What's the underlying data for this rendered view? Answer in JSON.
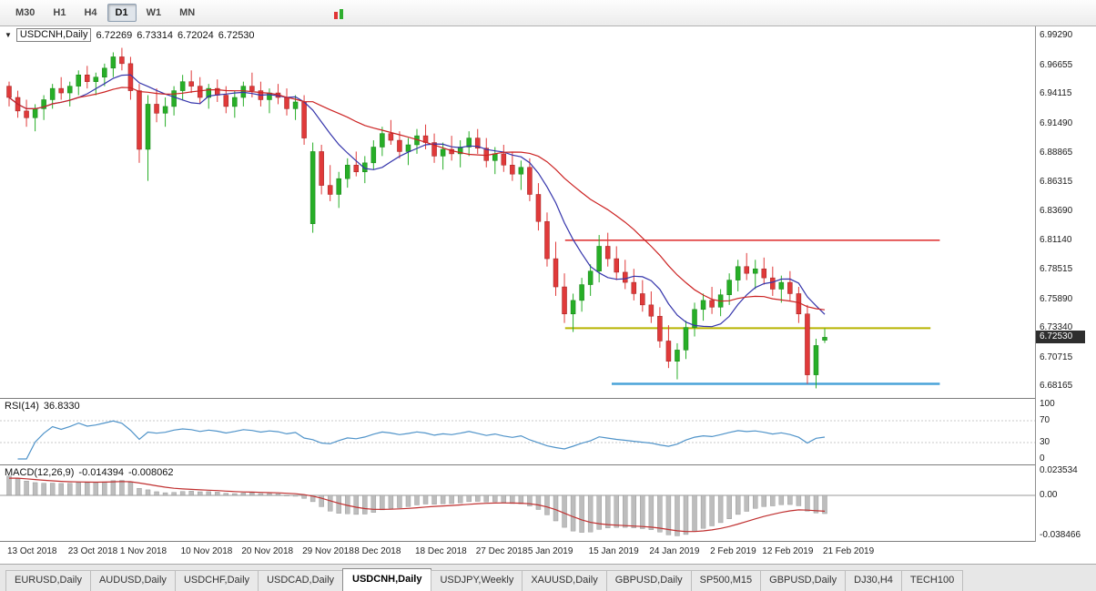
{
  "toolbar": {
    "timeframes": [
      "M30",
      "H1",
      "H4",
      "D1",
      "W1",
      "MN"
    ],
    "active_timeframe": "D1"
  },
  "icons": {
    "chevron_down": "▼"
  },
  "chart": {
    "symbol_label": "USDCNH,Daily",
    "ohlc": {
      "open": "6.72269",
      "high": "6.73314",
      "low": "6.72024",
      "close": "6.72530"
    },
    "current_price": "6.72530"
  },
  "chart_data": {
    "type": "candlestick",
    "symbol": "USDCNH",
    "timeframe": "Daily",
    "price_axis": {
      "min": 6.6715,
      "max": 7.001,
      "labels": [
        "6.99290",
        "6.96655",
        "6.94115",
        "6.91490",
        "6.88865",
        "6.86315",
        "6.83690",
        "6.81140",
        "6.78515",
        "6.75890",
        "6.73340",
        "6.70715",
        "6.68165"
      ]
    },
    "x_axis": {
      "labels": [
        {
          "text": "13 Oct 2018",
          "index": 0
        },
        {
          "text": "23 Oct 2018",
          "index": 7
        },
        {
          "text": "1 Nov 2018",
          "index": 13
        },
        {
          "text": "10 Nov 2018",
          "index": 20
        },
        {
          "text": "20 Nov 2018",
          "index": 27
        },
        {
          "text": "29 Nov 2018",
          "index": 34
        },
        {
          "text": "8 Dec 2018",
          "index": 40
        },
        {
          "text": "18 Dec 2018",
          "index": 47
        },
        {
          "text": "27 Dec 2018",
          "index": 54
        },
        {
          "text": "5 Jan 2019",
          "index": 60
        },
        {
          "text": "15 Jan 2019",
          "index": 67
        },
        {
          "text": "24 Jan 2019",
          "index": 74
        },
        {
          "text": "2 Feb 2019",
          "index": 81
        },
        {
          "text": "12 Feb 2019",
          "index": 87
        },
        {
          "text": "21 Feb 2019",
          "index": 94
        }
      ]
    },
    "candles": [
      [
        6.948,
        6.952,
        6.93,
        6.938
      ],
      [
        6.938,
        6.944,
        6.92,
        6.926
      ],
      [
        6.926,
        6.936,
        6.912,
        6.92
      ],
      [
        6.92,
        6.932,
        6.908,
        6.928
      ],
      [
        6.928,
        6.94,
        6.918,
        6.936
      ],
      [
        6.936,
        6.95,
        6.928,
        6.946
      ],
      [
        6.946,
        6.956,
        6.936,
        6.942
      ],
      [
        6.942,
        6.952,
        6.93,
        6.948
      ],
      [
        6.948,
        6.962,
        6.94,
        6.958
      ],
      [
        6.958,
        6.966,
        6.946,
        6.952
      ],
      [
        6.952,
        6.96,
        6.94,
        6.956
      ],
      [
        6.956,
        6.968,
        6.948,
        6.964
      ],
      [
        6.964,
        6.978,
        6.956,
        6.974
      ],
      [
        6.974,
        6.982,
        6.962,
        6.968
      ],
      [
        6.968,
        6.974,
        6.936,
        6.944
      ],
      [
        6.944,
        6.95,
        6.88,
        6.892
      ],
      [
        6.892,
        6.94,
        6.864,
        6.932
      ],
      [
        6.932,
        6.946,
        6.916,
        6.924
      ],
      [
        6.924,
        6.938,
        6.912,
        6.93
      ],
      [
        6.93,
        6.948,
        6.922,
        6.944
      ],
      [
        6.944,
        6.958,
        6.936,
        6.952
      ],
      [
        6.952,
        6.962,
        6.942,
        6.948
      ],
      [
        6.948,
        6.956,
        6.932,
        6.938
      ],
      [
        6.938,
        6.95,
        6.928,
        6.946
      ],
      [
        6.946,
        6.954,
        6.934,
        6.94
      ],
      [
        6.94,
        6.948,
        6.924,
        6.93
      ],
      [
        6.93,
        6.944,
        6.92,
        6.938
      ],
      [
        6.938,
        6.952,
        6.93,
        6.948
      ],
      [
        6.948,
        6.96,
        6.938,
        6.944
      ],
      [
        6.944,
        6.952,
        6.93,
        6.936
      ],
      [
        6.936,
        6.946,
        6.924,
        6.942
      ],
      [
        6.942,
        6.95,
        6.932,
        6.938
      ],
      [
        6.938,
        6.946,
        6.922,
        6.928
      ],
      [
        6.928,
        6.94,
        6.918,
        6.934
      ],
      [
        6.934,
        6.94,
        6.896,
        6.902
      ],
      [
        6.826,
        6.898,
        6.818,
        6.89
      ],
      [
        6.89,
        6.896,
        6.852,
        6.86
      ],
      [
        6.86,
        6.878,
        6.846,
        6.852
      ],
      [
        6.852,
        6.872,
        6.84,
        6.866
      ],
      [
        6.866,
        6.884,
        6.858,
        6.878
      ],
      [
        6.878,
        6.89,
        6.868,
        6.872
      ],
      [
        6.872,
        6.886,
        6.862,
        6.88
      ],
      [
        6.88,
        6.9,
        6.874,
        6.894
      ],
      [
        6.894,
        6.912,
        6.886,
        6.906
      ],
      [
        6.906,
        6.918,
        6.896,
        6.9
      ],
      [
        6.9,
        6.908,
        6.884,
        6.89
      ],
      [
        6.89,
        6.902,
        6.878,
        6.896
      ],
      [
        6.896,
        6.91,
        6.888,
        6.904
      ],
      [
        6.904,
        6.914,
        6.892,
        6.898
      ],
      [
        6.898,
        6.906,
        6.88,
        6.886
      ],
      [
        6.886,
        6.898,
        6.874,
        6.892
      ],
      [
        6.892,
        6.904,
        6.882,
        6.888
      ],
      [
        6.888,
        6.9,
        6.876,
        6.894
      ],
      [
        6.894,
        6.908,
        6.886,
        6.902
      ],
      [
        6.902,
        6.91,
        6.888,
        6.893
      ],
      [
        6.893,
        6.902,
        6.876,
        6.882
      ],
      [
        6.882,
        6.894,
        6.87,
        6.888
      ],
      [
        6.888,
        6.896,
        6.872,
        6.878
      ],
      [
        6.878,
        6.89,
        6.864,
        6.87
      ],
      [
        6.87,
        6.882,
        6.856,
        6.876
      ],
      [
        6.876,
        6.884,
        6.846,
        6.852
      ],
      [
        6.852,
        6.862,
        6.82,
        6.828
      ],
      [
        6.828,
        6.836,
        6.788,
        6.795
      ],
      [
        6.795,
        6.81,
        6.762,
        6.77
      ],
      [
        6.77,
        6.782,
        6.738,
        6.746
      ],
      [
        6.746,
        6.764,
        6.73,
        6.758
      ],
      [
        6.758,
        6.778,
        6.748,
        6.772
      ],
      [
        6.772,
        6.79,
        6.762,
        6.784
      ],
      [
        6.784,
        6.816,
        6.774,
        6.806
      ],
      [
        6.806,
        6.818,
        6.788,
        6.795
      ],
      [
        6.795,
        6.806,
        6.776,
        6.783
      ],
      [
        6.783,
        6.794,
        6.768,
        6.774
      ],
      [
        6.774,
        6.786,
        6.758,
        6.764
      ],
      [
        6.764,
        6.776,
        6.748,
        6.754
      ],
      [
        6.754,
        6.766,
        6.738,
        6.744
      ],
      [
        6.744,
        6.752,
        6.716,
        6.722
      ],
      [
        6.722,
        6.736,
        6.698,
        6.704
      ],
      [
        6.704,
        6.72,
        6.688,
        6.714
      ],
      [
        6.714,
        6.74,
        6.706,
        6.734
      ],
      [
        6.734,
        6.756,
        6.726,
        6.75
      ],
      [
        6.75,
        6.764,
        6.74,
        6.758
      ],
      [
        6.758,
        6.77,
        6.746,
        6.752
      ],
      [
        6.752,
        6.768,
        6.744,
        6.763
      ],
      [
        6.763,
        6.782,
        6.754,
        6.776
      ],
      [
        6.776,
        6.794,
        6.766,
        6.788
      ],
      [
        6.788,
        6.8,
        6.776,
        6.782
      ],
      [
        6.782,
        6.794,
        6.768,
        6.786
      ],
      [
        6.786,
        6.796,
        6.772,
        6.778
      ],
      [
        6.778,
        6.788,
        6.762,
        6.768
      ],
      [
        6.768,
        6.78,
        6.756,
        6.774
      ],
      [
        6.774,
        6.784,
        6.758,
        6.764
      ],
      [
        6.764,
        6.77,
        6.738,
        6.746
      ],
      [
        6.746,
        6.754,
        6.684,
        6.692
      ],
      [
        6.692,
        6.724,
        6.68,
        6.718
      ],
      [
        6.72269,
        6.73314,
        6.72024,
        6.7253
      ]
    ],
    "overlays": [
      {
        "name": "ma-fast",
        "type": "sma",
        "period": 8,
        "color": "#3434ab"
      },
      {
        "name": "ma-slow",
        "type": "sma",
        "period": 20,
        "color": "#cc2323"
      }
    ],
    "levels": [
      {
        "name": "red-resistance",
        "price": 6.8114,
        "color": "#e03a3a",
        "width": 1.6,
        "x1": 0.546,
        "x2": 0.908
      },
      {
        "name": "yellow-support",
        "price": 6.7334,
        "color": "#b8b400",
        "width": 2,
        "x1": 0.546,
        "x2": 0.899
      },
      {
        "name": "blue-support",
        "price": 6.684,
        "color": "#4aa3d8",
        "width": 2.5,
        "x1": 0.591,
        "x2": 0.908
      }
    ],
    "colors": {
      "up": "#27ae27",
      "down": "#e03a3a",
      "background": "#ffffff"
    }
  },
  "rsi": {
    "label": "RSI(14)",
    "value": "36.8330",
    "period": 14,
    "color": "#4f93c9",
    "levels": [
      70,
      30
    ],
    "axis_labels": [
      "100",
      "70",
      "30",
      "0"
    ],
    "range": [
      0,
      100
    ]
  },
  "macd": {
    "label": "MACD(12,26,9)",
    "macd_value": "-0.014394",
    "signal_value": "-0.008062",
    "axis_labels": [
      "0.023534",
      "0.00",
      "-0.038466"
    ],
    "range": [
      -0.038466,
      0.023534
    ],
    "histogram_color": "#bdbdbd",
    "signal_color": "#c03030"
  },
  "tabs": {
    "items": [
      {
        "label": "EURUSD,Daily"
      },
      {
        "label": "AUDUSD,Daily"
      },
      {
        "label": "USDCHF,Daily"
      },
      {
        "label": "USDCAD,Daily"
      },
      {
        "label": "USDCNH,Daily"
      },
      {
        "label": "USDJPY,Weekly"
      },
      {
        "label": "XAUUSD,Daily"
      },
      {
        "label": "GBPUSD,Daily"
      },
      {
        "label": "SP500,M15"
      },
      {
        "label": "GBPUSD,Daily"
      },
      {
        "label": "DJ30,H4"
      },
      {
        "label": "TECH100"
      }
    ],
    "active": "USDCNH,Daily"
  }
}
